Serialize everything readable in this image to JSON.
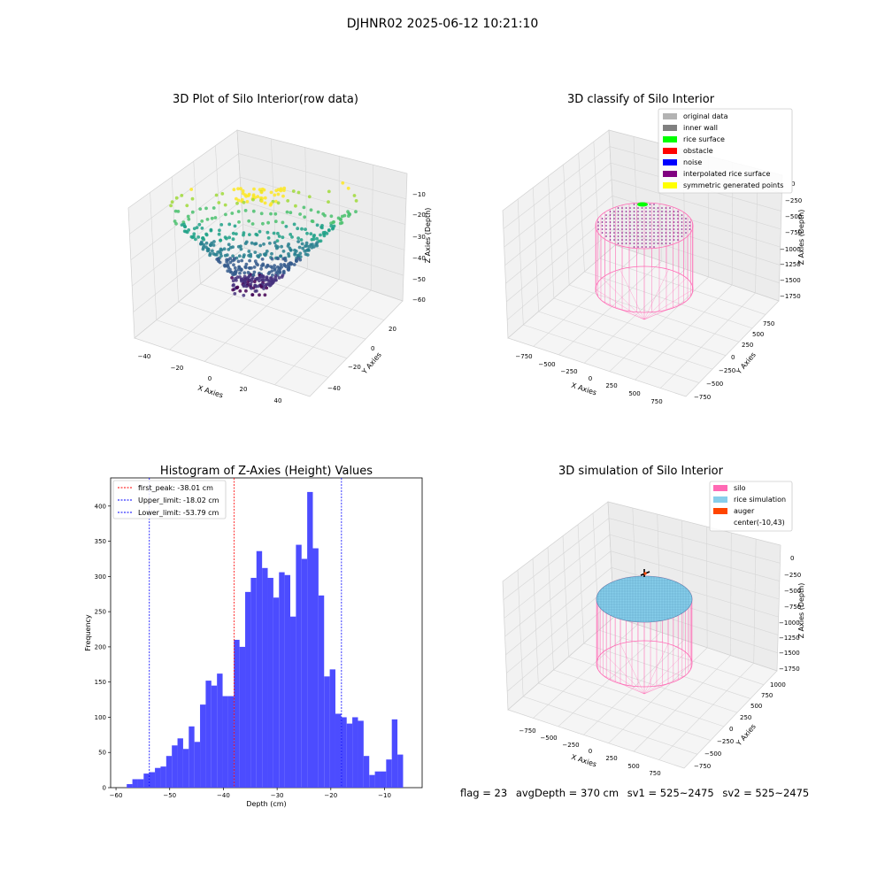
{
  "suptitle": "DJHNR02 2025-06-12 10:21:10",
  "footer": {
    "flag": "flag = 23",
    "avg_depth": "avgDepth = 370 cm",
    "sv1": "sv1 = 525~2475",
    "sv2": "sv2 = 525~2475"
  },
  "colors": {
    "hist_bar": "#4c4cff",
    "peak_line": "#ff0000",
    "limit_line": "#0000ff",
    "silo": "#ff69b4",
    "rice_sim": "#87ceeb",
    "auger": "#ff4500",
    "rice_surface": "#00ff00",
    "interp_surface": "#800080",
    "symmetric": "#ffff00"
  },
  "chart_data": [
    {
      "id": "raw",
      "type": "scatter",
      "title": "3D Plot of Silo Interior(row data)",
      "xlabel": "X Axies",
      "ylabel": "Y Axies",
      "zlabel": "Z Axies (Depth)",
      "x_ticks": [
        "−40",
        "−20",
        "0",
        "20",
        "40"
      ],
      "y_ticks": [
        "−40",
        "−20",
        "0",
        "20"
      ],
      "z_ticks": [
        "−10",
        "−20",
        "−30",
        "−40",
        "−50",
        "−60"
      ],
      "xlim": [
        -45,
        45
      ],
      "ylim": [
        -45,
        30
      ],
      "zlim": [
        -62,
        -5
      ],
      "colormap": "viridis"
    },
    {
      "id": "classify",
      "type": "scatter",
      "title": "3D classify of Silo Interior",
      "xlabel": "X Axies",
      "ylabel": "Y Axies",
      "zlabel": "Z Axies (Depth)",
      "x_ticks": [
        "−750",
        "−500",
        "−250",
        "0",
        "250",
        "500",
        "750"
      ],
      "y_ticks": [
        "−750",
        "−500",
        "−250",
        "0",
        "250",
        "500",
        "750"
      ],
      "z_ticks": [
        "0",
        "−250",
        "−500",
        "−750",
        "−1000",
        "−1250",
        "−1500",
        "−1750"
      ],
      "legend": [
        {
          "label": "original data",
          "color": "#b3b3b3"
        },
        {
          "label": "inner wall",
          "color": "#808080"
        },
        {
          "label": "rice surface",
          "color": "#00ff00"
        },
        {
          "label": "obstacle",
          "color": "#ff0000"
        },
        {
          "label": "noise",
          "color": "#0000ff"
        },
        {
          "label": "interpolated rice surface",
          "color": "#800080"
        },
        {
          "label": "symmetric generated points",
          "color": "#ffff00"
        }
      ]
    },
    {
      "id": "histogram",
      "type": "bar",
      "title": "Histogram of Z-Axies (Height) Values",
      "xlabel": "Depth (cm)",
      "ylabel": "Frequency",
      "x_start": -58.0,
      "bin_width": 1.05,
      "xlim": [
        -61,
        -3
      ],
      "ylim": [
        0,
        440
      ],
      "x_ticks": [
        -60,
        -50,
        -40,
        -30,
        -20,
        -10
      ],
      "x_tick_labels": [
        "−60",
        "−50",
        "−40",
        "−30",
        "−20",
        "−10"
      ],
      "y_ticks": [
        0,
        50,
        100,
        150,
        200,
        250,
        300,
        350,
        400
      ],
      "y_tick_labels": [
        "0",
        "50",
        "100",
        "150",
        "200",
        "250",
        "300",
        "350",
        "400"
      ],
      "values": [
        5,
        12,
        12,
        20,
        22,
        28,
        30,
        45,
        60,
        70,
        55,
        87,
        65,
        118,
        152,
        145,
        162,
        130,
        130,
        210,
        200,
        278,
        298,
        336,
        312,
        298,
        270,
        306,
        302,
        243,
        345,
        325,
        420,
        340,
        273,
        158,
        168,
        105,
        100,
        91,
        100,
        95,
        45,
        18,
        23,
        23,
        40,
        97,
        47
      ],
      "lines": [
        {
          "label": "first_peak: -38.01 cm",
          "x": -38.01,
          "color": "#ff0000"
        },
        {
          "label": "Upper_limit: -18.02 cm",
          "x": -18.02,
          "color": "#0000ff"
        },
        {
          "label": "Lower_limit: -53.79 cm",
          "x": -53.79,
          "color": "#0000ff"
        }
      ]
    },
    {
      "id": "simulation",
      "type": "surface",
      "title": "3D simulation of Silo Interior",
      "xlabel": "X Axies",
      "ylabel": "Y Axies",
      "zlabel": "Z Axies (Depth)",
      "x_ticks": [
        "−750",
        "−500",
        "−250",
        "0",
        "250",
        "500",
        "750"
      ],
      "y_ticks": [
        "−750",
        "−500",
        "−250",
        "0",
        "250",
        "500",
        "750",
        "1000"
      ],
      "z_ticks": [
        "0",
        "−250",
        "−500",
        "−750",
        "−1000",
        "−1250",
        "−1500",
        "−1750"
      ],
      "legend": [
        {
          "label": "silo",
          "color": "#ff69b4"
        },
        {
          "label": "rice simulation",
          "color": "#87ceeb"
        },
        {
          "label": "auger",
          "color": "#ff4500"
        },
        {
          "label": "center(-10,43)",
          "color": "none"
        }
      ]
    }
  ]
}
